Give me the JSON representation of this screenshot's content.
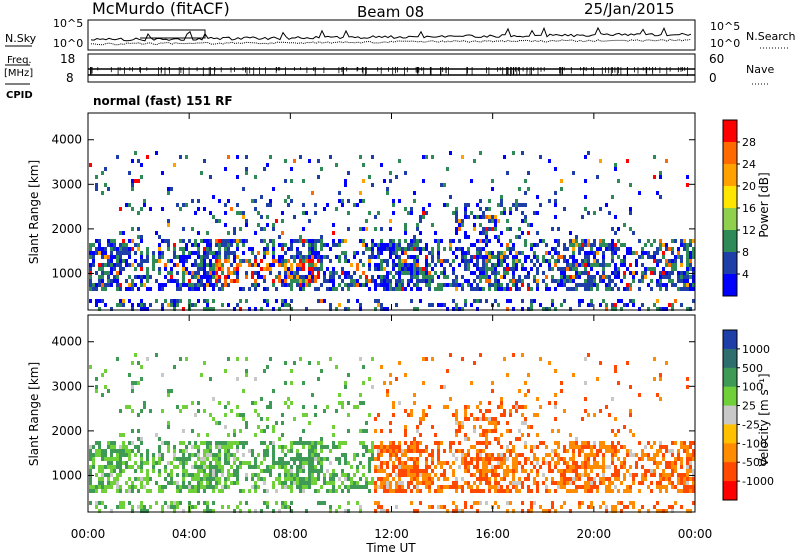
{
  "header": {
    "station": "McMurdo (fitACF)",
    "beam": "Beam 08",
    "date": "25/Jan/2015",
    "mode_label": "normal (fast) 151 RF"
  },
  "chart_data": [
    {
      "type": "line",
      "panel": "noise",
      "left_label": "N.Sky",
      "right_label": "N.Search",
      "left_ticks": [
        "10^5",
        "10^0"
      ],
      "right_ticks": [
        "10^5",
        "10^0"
      ],
      "series_styles": [
        "solid",
        "dotted"
      ]
    },
    {
      "type": "line",
      "panel": "frequency",
      "left_label_line1": "Freq.",
      "left_label_line2": "[MHz]",
      "left_label_cpid": "CPID",
      "right_label": "Nave",
      "left_ticks": [
        18,
        8
      ],
      "right_ticks": [
        60,
        0
      ],
      "ylim": [
        8,
        18
      ]
    },
    {
      "type": "heatmap",
      "panel": "power",
      "ylabel": "Slant Range [km]",
      "yticks": [
        1000,
        2000,
        3000,
        4000
      ],
      "ylim": [
        180,
        4600
      ],
      "colorbar_label": "Power [dB]",
      "colorbar_ticks": [
        28,
        24,
        20,
        16,
        12,
        8,
        4
      ],
      "colorbar_colors": [
        "#ff0000",
        "#ff6a00",
        "#ffa200",
        "#ffe600",
        "#8fd14f",
        "#2e8b57",
        "#1f3fa8",
        "#0000ff"
      ]
    },
    {
      "type": "heatmap",
      "panel": "velocity",
      "ylabel": "Slant Range [km]",
      "xlabel": "Time UT",
      "yticks": [
        1000,
        2000,
        3000,
        4000
      ],
      "ylim": [
        180,
        4600
      ],
      "xticks": [
        "00:00",
        "04:00",
        "08:00",
        "12:00",
        "16:00",
        "20:00",
        "00:00"
      ],
      "colorbar_label": "Velocity [m s⁻¹]",
      "colorbar_ticks": [
        "1000",
        "500",
        "100",
        "25",
        "-25",
        "-100",
        "-500",
        "-1000"
      ],
      "colorbar_colors": [
        "#1f3fa8",
        "#2e6e6e",
        "#3f9a56",
        "#6fd03a",
        "#c8c8c8",
        "#ffc000",
        "#ff8c00",
        "#ff4800",
        "#ff0000"
      ]
    }
  ]
}
